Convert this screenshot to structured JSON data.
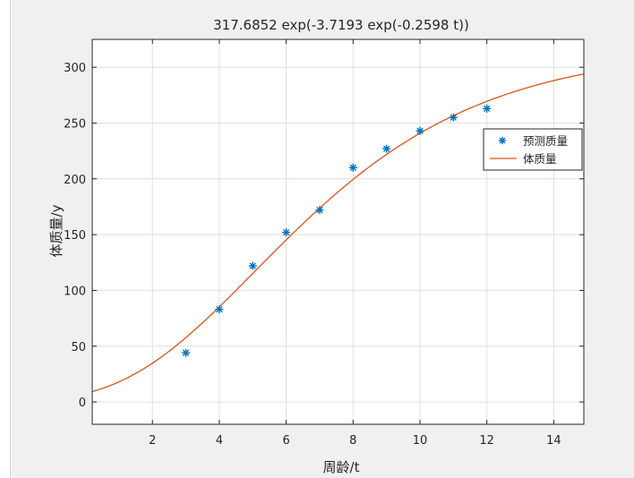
{
  "chart_data": {
    "type": "scatter",
    "title": "317.6852 exp(-3.7193 exp(-0.2598 t))",
    "xlabel": "周龄/t",
    "ylabel": "体质量/y",
    "xlim": [
      0.2,
      14.9
    ],
    "ylim": [
      -20,
      325
    ],
    "xticks": [
      2,
      4,
      6,
      8,
      10,
      12,
      14
    ],
    "yticks": [
      0,
      50,
      100,
      150,
      200,
      250,
      300
    ],
    "grid": true,
    "legend_position": "right-center",
    "series": [
      {
        "name": "预测质量",
        "kind": "marker",
        "marker": "asterisk",
        "color": "#0072bd",
        "x": [
          3,
          4,
          5,
          6,
          7,
          8,
          9,
          10,
          11,
          12
        ],
        "y": [
          44,
          83,
          122,
          152,
          172,
          210,
          227,
          243,
          255,
          263
        ]
      },
      {
        "name": "体质量",
        "kind": "line",
        "color": "#d95319",
        "model": {
          "a": 317.6852,
          "b": 3.7193,
          "c": 0.2598
        }
      }
    ]
  }
}
